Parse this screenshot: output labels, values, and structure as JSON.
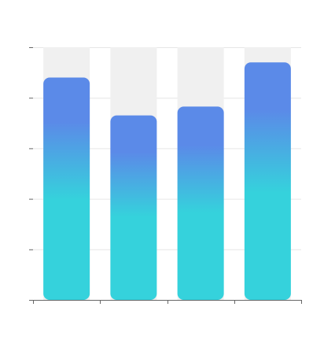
{
  "chart_data": {
    "type": "bar",
    "categories": [
      "",
      "",
      "",
      ""
    ],
    "values": [
      88,
      73,
      76.5,
      94
    ],
    "ylim": [
      0,
      100
    ],
    "ytick_values": [
      0,
      20,
      40,
      60,
      80,
      100
    ],
    "grid": true,
    "legend": "none",
    "colors": {
      "bar_gradient_top": "#5b8ae8",
      "bar_gradient_bottom": "#35d2dc",
      "background_track": "#f0f0f0",
      "gridline": "#e6e6e6",
      "axis": "#666666"
    }
  }
}
